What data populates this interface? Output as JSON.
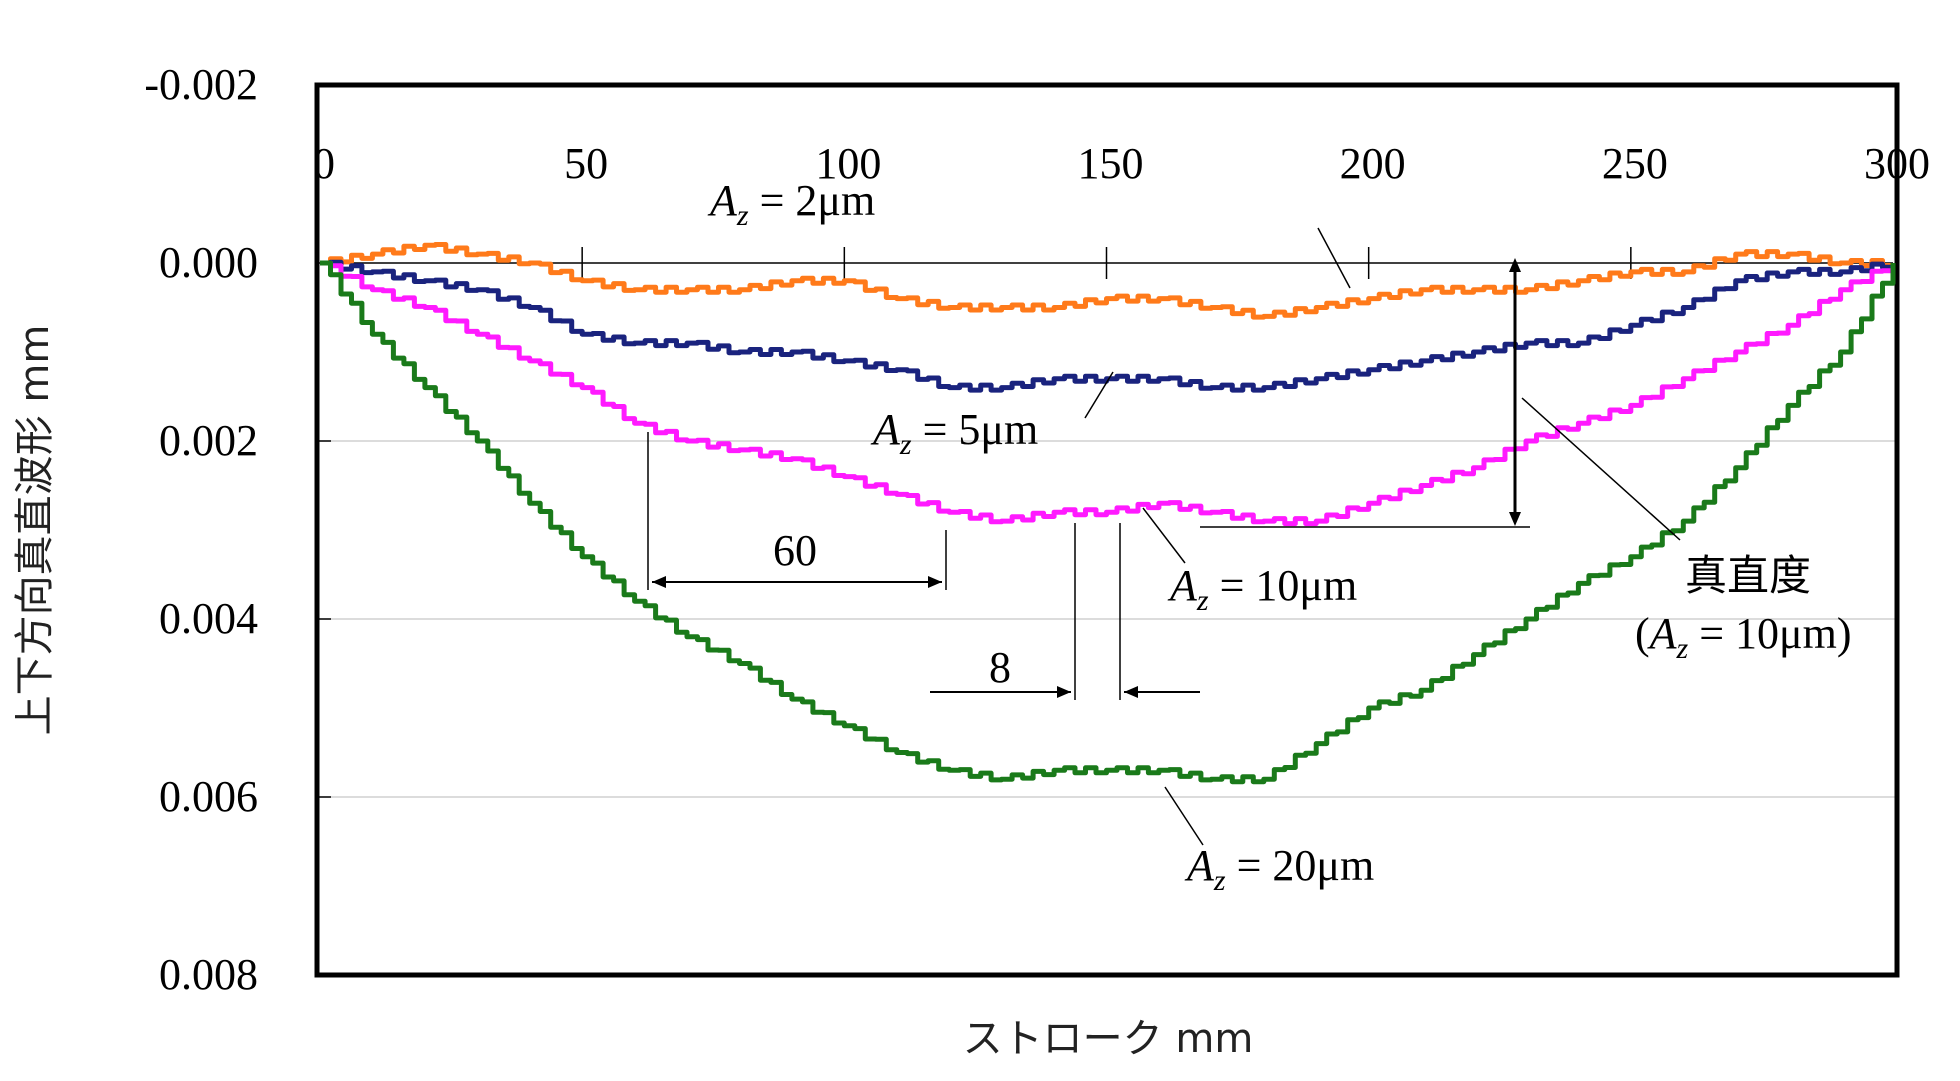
{
  "chart_data": {
    "type": "line",
    "xlabel": "ストローク mm",
    "ylabel": "上下方向真直波形 mm",
    "xlim": [
      0,
      300
    ],
    "ylim": [
      -0.002,
      0.008
    ],
    "y_inverted": true,
    "x_ticks": [
      "0",
      "50",
      "100",
      "150",
      "200",
      "250",
      "300"
    ],
    "y_ticks": [
      "-0.002",
      "0.000",
      "0.002",
      "0.004",
      "0.006",
      "0.008"
    ],
    "grid": "horizontal",
    "series": [
      {
        "name": "Az = 2μm",
        "color": "#ff7a1a",
        "x": [
          0,
          10,
          20,
          30,
          40,
          50,
          60,
          70,
          80,
          90,
          100,
          110,
          120,
          130,
          140,
          150,
          160,
          170,
          180,
          190,
          200,
          210,
          220,
          230,
          240,
          250,
          260,
          270,
          280,
          290,
          300
        ],
        "y": [
          0.0,
          -0.0001,
          -0.0002,
          -0.0001,
          0.0,
          0.0002,
          0.0003,
          0.0003,
          0.0003,
          0.0002,
          0.0002,
          0.0004,
          0.0005,
          0.0005,
          0.0005,
          0.0004,
          0.0004,
          0.0005,
          0.0006,
          0.0005,
          0.0004,
          0.0003,
          0.0003,
          0.0003,
          0.0002,
          0.0001,
          0.0001,
          -0.0001,
          -0.0001,
          0.0,
          0.0
        ]
      },
      {
        "name": "Az = 5μm",
        "color": "#1a237e",
        "x": [
          0,
          10,
          20,
          30,
          40,
          50,
          60,
          70,
          80,
          90,
          100,
          110,
          120,
          130,
          140,
          150,
          160,
          170,
          180,
          190,
          200,
          210,
          220,
          230,
          240,
          250,
          260,
          270,
          280,
          290,
          300
        ],
        "y": [
          0.0,
          0.0001,
          0.0002,
          0.0003,
          0.0005,
          0.0008,
          0.0009,
          0.0009,
          0.001,
          0.001,
          0.0011,
          0.0012,
          0.0014,
          0.0014,
          0.0013,
          0.0013,
          0.0013,
          0.0014,
          0.0014,
          0.0013,
          0.0012,
          0.0011,
          0.001,
          0.0009,
          0.0009,
          0.0007,
          0.0005,
          0.0002,
          0.0001,
          0.0001,
          0.0
        ]
      },
      {
        "name": "Az = 10μm",
        "color": "#ff1aff",
        "x": [
          0,
          10,
          20,
          30,
          40,
          50,
          60,
          70,
          80,
          90,
          100,
          110,
          120,
          130,
          140,
          150,
          160,
          170,
          180,
          190,
          200,
          210,
          220,
          230,
          240,
          250,
          260,
          270,
          280,
          290,
          300
        ],
        "y": [
          0.0,
          0.0003,
          0.0005,
          0.0008,
          0.0011,
          0.0014,
          0.0018,
          0.002,
          0.0021,
          0.0022,
          0.0024,
          0.0026,
          0.0028,
          0.0029,
          0.0028,
          0.0028,
          0.0027,
          0.0028,
          0.0029,
          0.0029,
          0.0027,
          0.0025,
          0.0023,
          0.002,
          0.0018,
          0.0016,
          0.0013,
          0.001,
          0.0007,
          0.0003,
          0.0
        ]
      },
      {
        "name": "Az = 20μm",
        "color": "#1a7a1a",
        "x": [
          0,
          10,
          20,
          30,
          40,
          50,
          60,
          70,
          80,
          90,
          100,
          110,
          120,
          130,
          140,
          150,
          160,
          170,
          180,
          190,
          200,
          210,
          220,
          230,
          240,
          250,
          260,
          270,
          280,
          290,
          300
        ],
        "y": [
          0.0,
          0.0008,
          0.0014,
          0.002,
          0.0027,
          0.0033,
          0.0038,
          0.0042,
          0.0045,
          0.0049,
          0.0052,
          0.0055,
          0.0057,
          0.0058,
          0.0057,
          0.0057,
          0.0057,
          0.0058,
          0.0058,
          0.0054,
          0.005,
          0.0048,
          0.0044,
          0.004,
          0.0036,
          0.0033,
          0.0029,
          0.0023,
          0.0016,
          0.001,
          0.0
        ]
      }
    ],
    "annotations": [
      {
        "name": "label-az2",
        "text": "Az = 2μm"
      },
      {
        "name": "label-az5",
        "text": "Az = 5μm"
      },
      {
        "name": "label-az10",
        "text": "Az = 10μm"
      },
      {
        "name": "label-az20",
        "text": "Az = 20μm"
      },
      {
        "name": "dim-60",
        "text": "60"
      },
      {
        "name": "dim-8",
        "text": "8"
      },
      {
        "name": "straightness-label",
        "text": "真直度"
      },
      {
        "name": "straightness-sub",
        "text": "(Az = 10μm)"
      }
    ]
  }
}
